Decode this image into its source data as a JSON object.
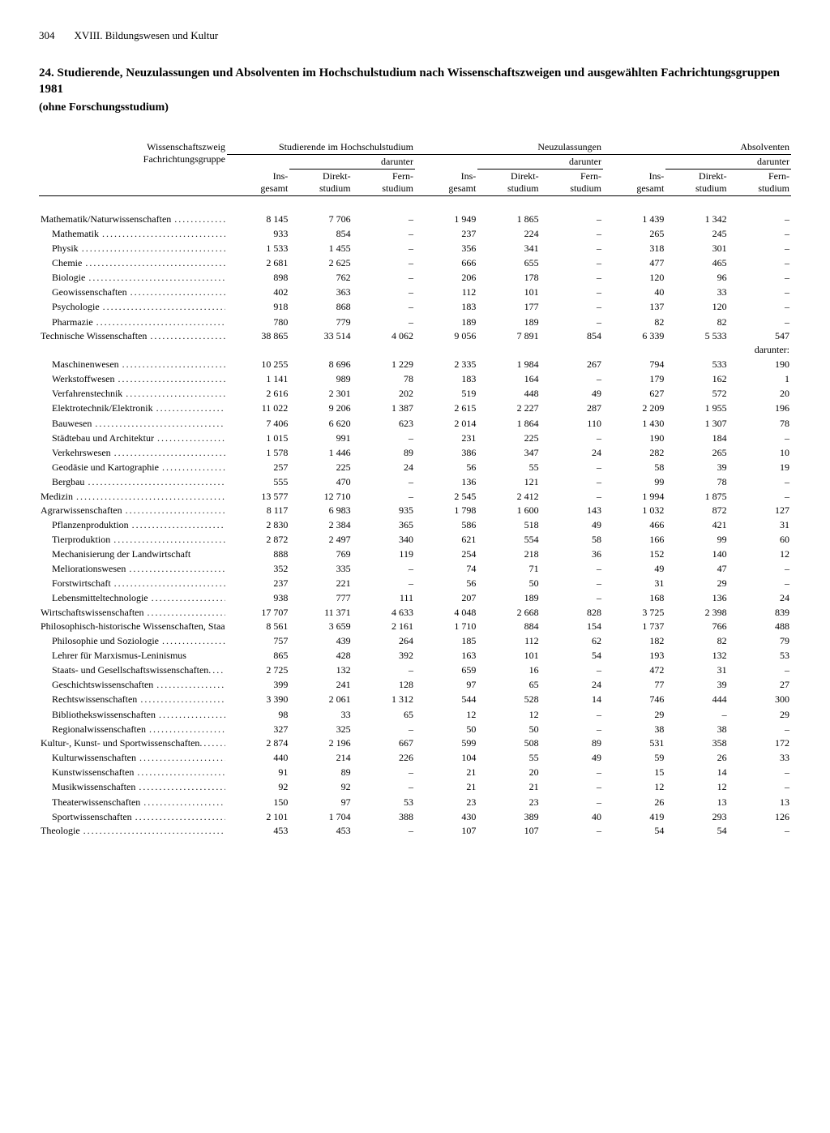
{
  "page": {
    "number": "304",
    "section": "XVIII. Bildungswesen und Kultur",
    "title": "24. Studierende, Neuzulassungen und Absolventen im Hochschulstudium nach Wissenschaftszweigen und ausgewählten Fachrichtungsgruppen 1981",
    "subtitle": "(ohne Forschungsstudium)"
  },
  "headers": {
    "rowhead1": "Wissenschaftszweig",
    "rowhead2": "Fachrichtungsgruppe",
    "stud": "Studierende im Hochschulstudium",
    "neu": "Neuzulassungen",
    "abs": "Absolventen",
    "ins": "Ins-\ngesamt",
    "dar": "darunter",
    "dir": "Direkt-\nstudium",
    "fern": "Fern-\nstudium",
    "darunter_word": "darunter:"
  },
  "rows": [
    {
      "t": "main",
      "label": "Mathematik/Naturwissenschaften",
      "v": [
        "8 145",
        "7 706",
        "–",
        "1 949",
        "1 865",
        "–",
        "1 439",
        "1 342",
        "–"
      ]
    },
    {
      "t": "sub",
      "label": "Mathematik",
      "v": [
        "933",
        "854",
        "–",
        "237",
        "224",
        "–",
        "265",
        "245",
        "–"
      ]
    },
    {
      "t": "sub",
      "label": "Physik",
      "v": [
        "1 533",
        "1 455",
        "–",
        "356",
        "341",
        "–",
        "318",
        "301",
        "–"
      ]
    },
    {
      "t": "sub",
      "label": "Chemie",
      "v": [
        "2 681",
        "2 625",
        "–",
        "666",
        "655",
        "–",
        "477",
        "465",
        "–"
      ]
    },
    {
      "t": "sub",
      "label": "Biologie",
      "v": [
        "898",
        "762",
        "–",
        "206",
        "178",
        "–",
        "120",
        "96",
        "–"
      ]
    },
    {
      "t": "sub",
      "label": "Geowissenschaften",
      "v": [
        "402",
        "363",
        "–",
        "112",
        "101",
        "–",
        "40",
        "33",
        "–"
      ]
    },
    {
      "t": "sub",
      "label": "Psychologie",
      "v": [
        "918",
        "868",
        "–",
        "183",
        "177",
        "–",
        "137",
        "120",
        "–"
      ]
    },
    {
      "t": "sub",
      "label": "Pharmazie",
      "v": [
        "780",
        "779",
        "–",
        "189",
        "189",
        "–",
        "82",
        "82",
        "–"
      ]
    },
    {
      "t": "main",
      "label": "Technische Wissenschaften",
      "v": [
        "38 865",
        "33 514",
        "4 062",
        "9 056",
        "7 891",
        "854",
        "6 339",
        "5 533",
        "547"
      ]
    },
    {
      "t": "darunter"
    },
    {
      "t": "sub",
      "label": "Maschinenwesen",
      "v": [
        "10 255",
        "8 696",
        "1 229",
        "2 335",
        "1 984",
        "267",
        "794",
        "533",
        "190"
      ]
    },
    {
      "t": "sub",
      "label": "Werkstoffwesen",
      "v": [
        "1 141",
        "989",
        "78",
        "183",
        "164",
        "–",
        "179",
        "162",
        "1"
      ]
    },
    {
      "t": "sub",
      "label": "Verfahrenstechnik",
      "v": [
        "2 616",
        "2 301",
        "202",
        "519",
        "448",
        "49",
        "627",
        "572",
        "20"
      ]
    },
    {
      "t": "sub",
      "label": "Elektrotechnik/Elektronik",
      "v": [
        "11 022",
        "9 206",
        "1 387",
        "2 615",
        "2 227",
        "287",
        "2 209",
        "1 955",
        "196"
      ]
    },
    {
      "t": "sub",
      "label": "Bauwesen",
      "v": [
        "7 406",
        "6 620",
        "623",
        "2 014",
        "1 864",
        "110",
        "1 430",
        "1 307",
        "78"
      ]
    },
    {
      "t": "sub",
      "label": "Städtebau und Architektur",
      "v": [
        "1 015",
        "991",
        "–",
        "231",
        "225",
        "–",
        "190",
        "184",
        "–"
      ]
    },
    {
      "t": "sub",
      "label": "Verkehrswesen",
      "v": [
        "1 578",
        "1 446",
        "89",
        "386",
        "347",
        "24",
        "282",
        "265",
        "10"
      ]
    },
    {
      "t": "sub",
      "label": "Geodäsie und Kartographie",
      "v": [
        "257",
        "225",
        "24",
        "56",
        "55",
        "–",
        "58",
        "39",
        "19"
      ]
    },
    {
      "t": "sub",
      "label": "Bergbau",
      "v": [
        "555",
        "470",
        "–",
        "136",
        "121",
        "–",
        "99",
        "78",
        "–"
      ]
    },
    {
      "t": "main",
      "label": "Medizin",
      "v": [
        "13 577",
        "12 710",
        "–",
        "2 545",
        "2 412",
        "–",
        "1 994",
        "1 875",
        "–"
      ]
    },
    {
      "t": "main",
      "label": "Agrarwissenschaften",
      "v": [
        "8 117",
        "6 983",
        "935",
        "1 798",
        "1 600",
        "143",
        "1 032",
        "872",
        "127"
      ]
    },
    {
      "t": "sub",
      "label": "Pflanzenproduktion",
      "v": [
        "2 830",
        "2 384",
        "365",
        "586",
        "518",
        "49",
        "466",
        "421",
        "31"
      ]
    },
    {
      "t": "sub",
      "label": "Tierproduktion",
      "v": [
        "2 872",
        "2 497",
        "340",
        "621",
        "554",
        "58",
        "166",
        "99",
        "60"
      ]
    },
    {
      "t": "sub",
      "label": "Mechanisierung der Landwirtschaft",
      "nodots": true,
      "v": [
        "888",
        "769",
        "119",
        "254",
        "218",
        "36",
        "152",
        "140",
        "12"
      ]
    },
    {
      "t": "sub",
      "label": "Meliorationswesen",
      "v": [
        "352",
        "335",
        "–",
        "74",
        "71",
        "–",
        "49",
        "47",
        "–"
      ]
    },
    {
      "t": "sub",
      "label": "Forstwirtschaft",
      "v": [
        "237",
        "221",
        "–",
        "56",
        "50",
        "–",
        "31",
        "29",
        "–"
      ]
    },
    {
      "t": "sub",
      "label": "Lebensmitteltechnologie",
      "v": [
        "938",
        "777",
        "111",
        "207",
        "189",
        "–",
        "168",
        "136",
        "24"
      ]
    },
    {
      "t": "main",
      "label": "Wirtschaftswissenschaften",
      "v": [
        "17 707",
        "11 371",
        "4 633",
        "4 048",
        "2 668",
        "828",
        "3 725",
        "2 398",
        "839"
      ]
    },
    {
      "t": "main",
      "label": "Philosophisch-historische Wissenschaften, Staats- und Rechtswissenschaften",
      "wrap": true,
      "v": [
        "8 561",
        "3 659",
        "2 161",
        "1 710",
        "884",
        "154",
        "1 737",
        "766",
        "488"
      ]
    },
    {
      "t": "sub",
      "label": "Philosophie und Soziologie",
      "v": [
        "757",
        "439",
        "264",
        "185",
        "112",
        "62",
        "182",
        "82",
        "79"
      ]
    },
    {
      "t": "sub",
      "label": "Lehrer für Marxismus-Leninismus",
      "nodots": true,
      "v": [
        "865",
        "428",
        "392",
        "163",
        "101",
        "54",
        "193",
        "132",
        "53"
      ]
    },
    {
      "t": "sub",
      "label": "Staats- und Gesellschaftswissenschaften",
      "wrap": true,
      "v": [
        "2 725",
        "132",
        "–",
        "659",
        "16",
        "–",
        "472",
        "31",
        "–"
      ]
    },
    {
      "t": "sub",
      "label": "Geschichtswissenschaften",
      "v": [
        "399",
        "241",
        "128",
        "97",
        "65",
        "24",
        "77",
        "39",
        "27"
      ]
    },
    {
      "t": "sub",
      "label": "Rechtswissenschaften",
      "v": [
        "3 390",
        "2 061",
        "1 312",
        "544",
        "528",
        "14",
        "746",
        "444",
        "300"
      ]
    },
    {
      "t": "sub",
      "label": "Bibliothekswissenschaften",
      "v": [
        "98",
        "33",
        "65",
        "12",
        "12",
        "–",
        "29",
        "–",
        "29"
      ]
    },
    {
      "t": "sub",
      "label": "Regionalwissenschaften",
      "v": [
        "327",
        "325",
        "–",
        "50",
        "50",
        "–",
        "38",
        "38",
        "–"
      ]
    },
    {
      "t": "main",
      "label": "Kultur-, Kunst- und Sportwissenschaften",
      "wrap": true,
      "v": [
        "2 874",
        "2 196",
        "667",
        "599",
        "508",
        "89",
        "531",
        "358",
        "172"
      ]
    },
    {
      "t": "sub",
      "label": "Kulturwissenschaften",
      "v": [
        "440",
        "214",
        "226",
        "104",
        "55",
        "49",
        "59",
        "26",
        "33"
      ]
    },
    {
      "t": "sub",
      "label": "Kunstwissenschaften",
      "v": [
        "91",
        "89",
        "–",
        "21",
        "20",
        "–",
        "15",
        "14",
        "–"
      ]
    },
    {
      "t": "sub",
      "label": "Musikwissenschaften",
      "v": [
        "92",
        "92",
        "–",
        "21",
        "21",
        "–",
        "12",
        "12",
        "–"
      ]
    },
    {
      "t": "sub",
      "label": "Theaterwissenschaften",
      "v": [
        "150",
        "97",
        "53",
        "23",
        "23",
        "–",
        "26",
        "13",
        "13"
      ]
    },
    {
      "t": "sub",
      "label": "Sportwissenschaften",
      "v": [
        "2 101",
        "1 704",
        "388",
        "430",
        "389",
        "40",
        "419",
        "293",
        "126"
      ]
    },
    {
      "t": "main",
      "label": "Theologie",
      "v": [
        "453",
        "453",
        "–",
        "107",
        "107",
        "–",
        "54",
        "54",
        "–"
      ]
    }
  ]
}
